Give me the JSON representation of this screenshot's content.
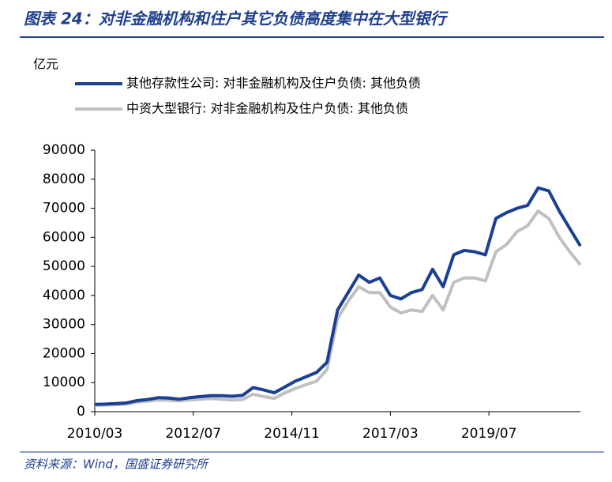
{
  "chart_data": {
    "type": "line",
    "title": "图表 24：对非金融机构和住户其它负债高度集中在大型银行",
    "y_unit": "亿元",
    "source": "资料来源：Wind，国盛证券研究所",
    "x": [
      "2010/03",
      "2010/06",
      "2010/09",
      "2010/12",
      "2011/03",
      "2011/06",
      "2011/09",
      "2011/12",
      "2012/03",
      "2012/06",
      "2012/09",
      "2012/12",
      "2013/03",
      "2013/06",
      "2013/09",
      "2013/12",
      "2014/03",
      "2014/06",
      "2014/09",
      "2014/12",
      "2015/03",
      "2015/06",
      "2015/09",
      "2015/12",
      "2016/03",
      "2016/06",
      "2016/09",
      "2016/12",
      "2017/03",
      "2017/06",
      "2017/09",
      "2017/12",
      "2018/03",
      "2018/06",
      "2018/09",
      "2018/12",
      "2019/03",
      "2019/06",
      "2019/09",
      "2019/12",
      "2020/03",
      "2020/06",
      "2020/09",
      "2020/12",
      "2021/03",
      "2021/06",
      "2021/09"
    ],
    "xticks": [
      "2010/03",
      "2012/07",
      "2014/11",
      "2017/03",
      "2019/07"
    ],
    "series": [
      {
        "name": "其他存款性公司: 对非金融机构及住户负债: 其他负债",
        "color": "#1a3f94",
        "values": [
          2500,
          2600,
          2800,
          3000,
          3800,
          4200,
          4800,
          4700,
          4300,
          4800,
          5200,
          5500,
          5500,
          5300,
          5600,
          8300,
          7500,
          6500,
          8500,
          10500,
          12000,
          13500,
          17000,
          35000,
          41000,
          47000,
          44500,
          46000,
          40000,
          38800,
          41000,
          42000,
          49000,
          43000,
          54000,
          55500,
          55000,
          54000,
          66500,
          68500,
          70000,
          71000,
          77000,
          76000,
          69000,
          63000,
          57000
        ]
      },
      {
        "name": "中资大型银行: 对非金融机构及住户负债: 其他负债",
        "color": "#c0c0c0",
        "values": [
          2200,
          2300,
          2400,
          2600,
          3300,
          3600,
          4000,
          3900,
          3700,
          4000,
          4300,
          4500,
          4300,
          4000,
          4200,
          6000,
          5200,
          4600,
          6500,
          8000,
          9300,
          10500,
          14500,
          32000,
          38000,
          43000,
          41000,
          41000,
          36000,
          34000,
          35000,
          34500,
          40000,
          35000,
          44500,
          46000,
          46000,
          45000,
          55000,
          57500,
          62000,
          64000,
          69000,
          66500,
          60000,
          55000,
          50500
        ]
      }
    ],
    "ylim": [
      0,
      90000
    ],
    "yticks": [
      0,
      10000,
      20000,
      30000,
      40000,
      50000,
      60000,
      70000,
      80000,
      90000
    ]
  }
}
